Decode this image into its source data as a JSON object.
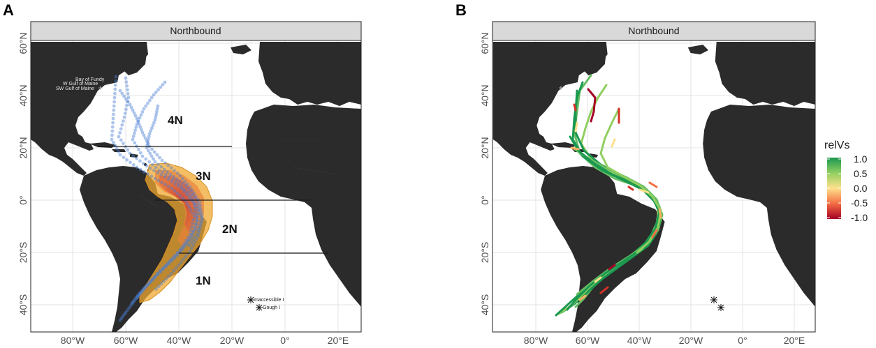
{
  "panels": {
    "a": {
      "letter": "A",
      "strip": "Northbound",
      "zones": [
        "4N",
        "3N",
        "2N",
        "1N"
      ],
      "places": [
        "Bay of Fundy",
        "W Gulf of Maine",
        "SW Gulf of Maine"
      ],
      "islands": [
        "Inaccessible I",
        "Gough I"
      ]
    },
    "b": {
      "letter": "B",
      "strip": "Northbound"
    }
  },
  "axes": {
    "lat_labels": [
      "60°N",
      "40°N",
      "20°N",
      "0°",
      "20°S",
      "40°S"
    ],
    "lon_labels": [
      "80°W",
      "60°W",
      "40°W",
      "20°W",
      "0°",
      "20°E"
    ]
  },
  "legend": {
    "title": "relVs",
    "ticks": [
      "1.0",
      "0.5",
      "0.0",
      "-0.5",
      "-1.0"
    ],
    "colors": [
      "#1a9850",
      "#66bd63",
      "#fee08b",
      "#f46d43",
      "#a50026"
    ]
  },
  "colors": {
    "land": "#2b2b2b",
    "ocean": "#ffffff",
    "track_dots": "#4a7fd4",
    "kde_outer": "#f0a830",
    "kde_mid": "#e8823a",
    "kde_inner": "#d94a3a"
  }
}
